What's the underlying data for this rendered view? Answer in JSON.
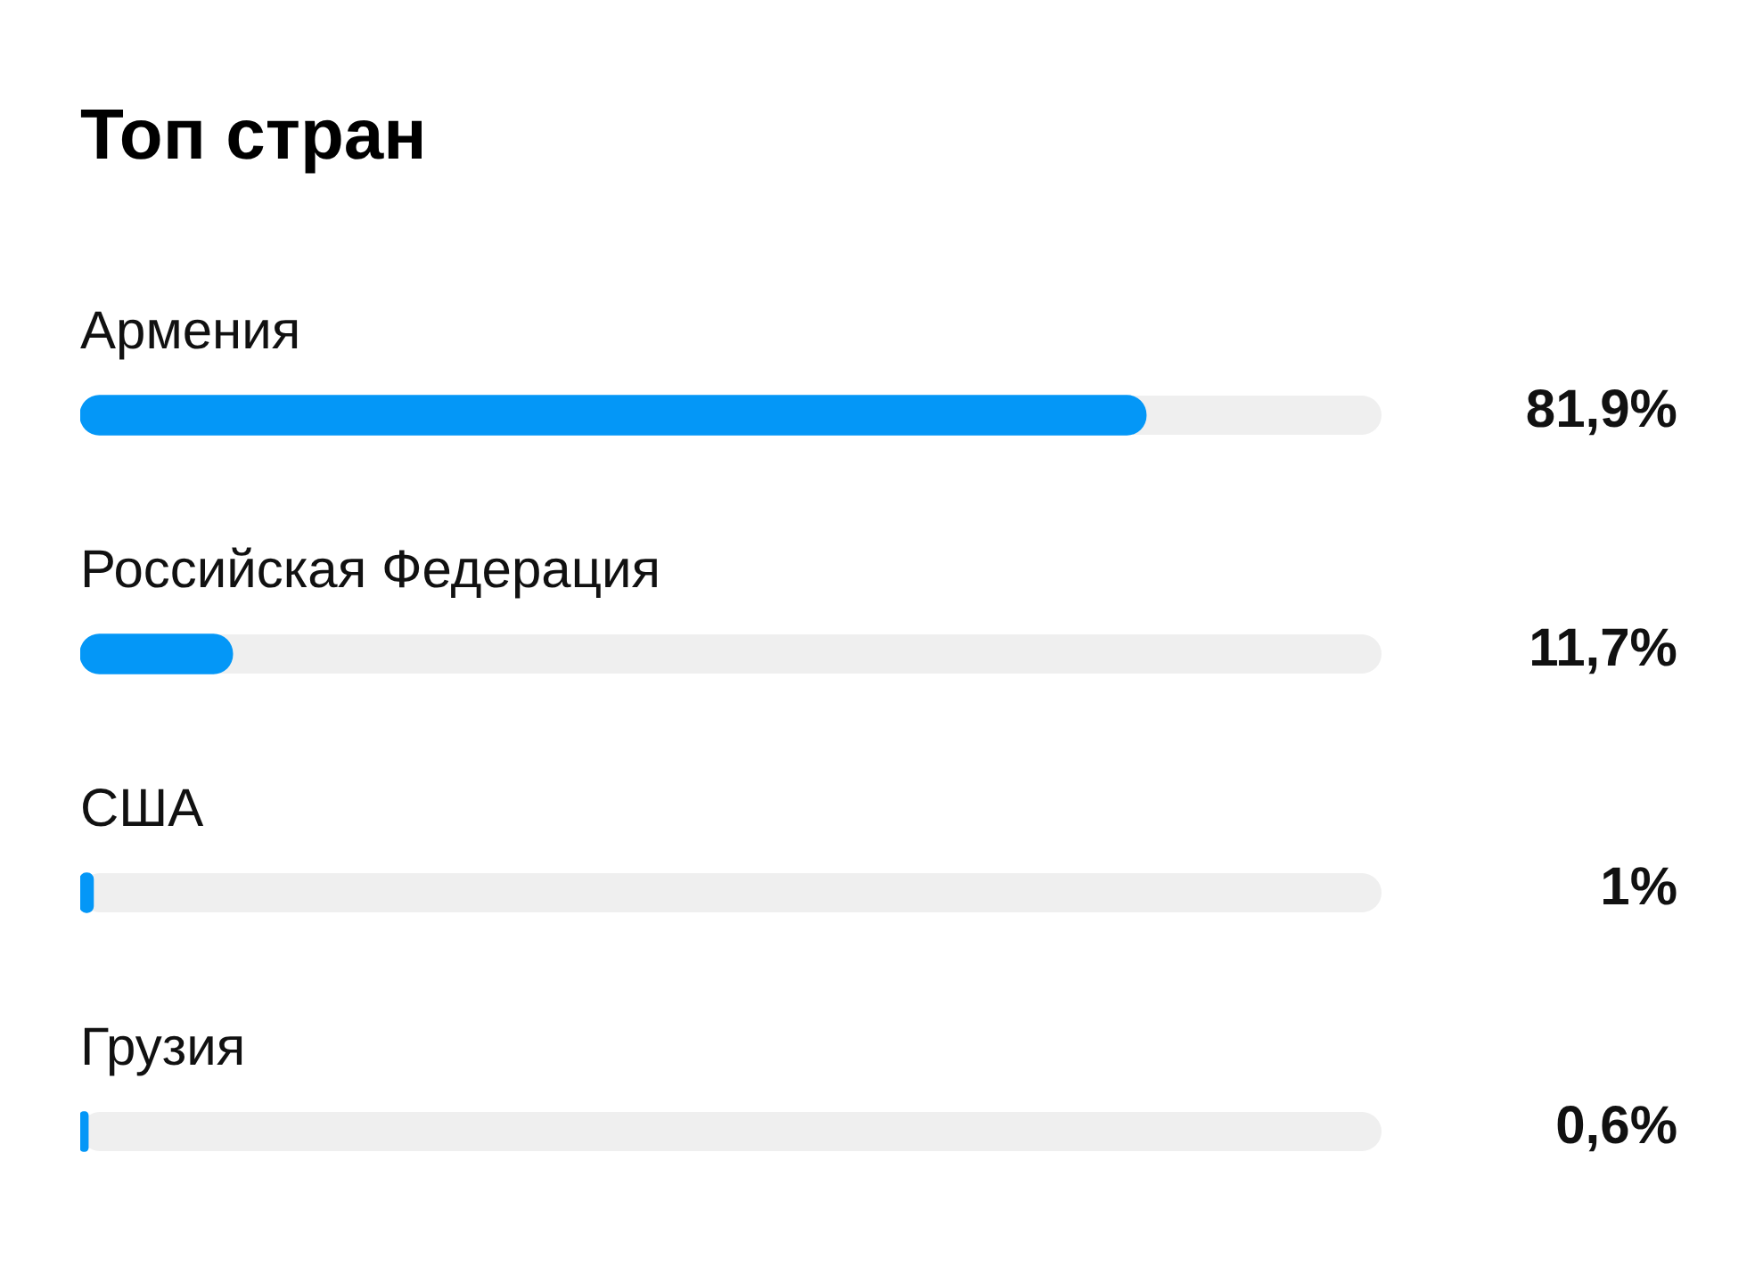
{
  "chart_data": {
    "type": "bar",
    "orientation": "horizontal",
    "title": "Топ стран",
    "categories": [
      "Армения",
      "Российская Федерация",
      "США",
      "Грузия"
    ],
    "values": [
      81.9,
      11.7,
      1,
      0.6
    ],
    "value_labels": [
      "81,9%",
      "11,7%",
      "1%",
      "0,6%"
    ],
    "color": "#0497f7",
    "xlim": [
      0,
      100
    ],
    "tick_labels": "y"
  }
}
